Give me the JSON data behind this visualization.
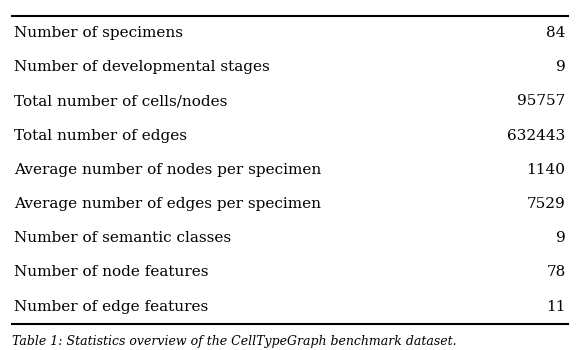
{
  "rows": [
    [
      "Number of specimens",
      "84"
    ],
    [
      "Number of developmental stages",
      "9"
    ],
    [
      "Total number of cells/nodes",
      "95757"
    ],
    [
      "Total number of edges",
      "632443"
    ],
    [
      "Average number of nodes per specimen",
      "1140"
    ],
    [
      "Average number of edges per specimen",
      "7529"
    ],
    [
      "Number of semantic classes",
      "9"
    ],
    [
      "Number of node features",
      "78"
    ],
    [
      "Number of edge features",
      "11"
    ]
  ],
  "caption": "Table 1: Statistics overview of the CellTypeGraph benchmark dataset.",
  "bg_color": "#ffffff",
  "text_color": "#000000",
  "font_size": 11.0,
  "caption_font_size": 9.0
}
